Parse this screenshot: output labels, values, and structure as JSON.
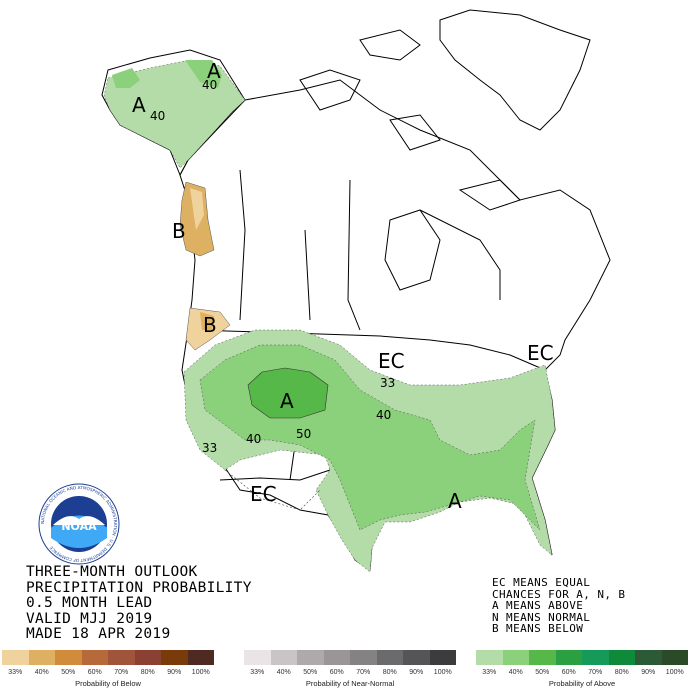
{
  "map_labels": {
    "alaska_a_top": "A",
    "alaska_40_top": "40",
    "alaska_a_mid": "A",
    "alaska_40_mid": "40",
    "pacific_nw_b": "B",
    "oregon_b": "B",
    "rockies_a": "A",
    "contour_50": "50",
    "contour_40_west": "40",
    "contour_33_west": "33",
    "contour_40_plains": "40",
    "contour_33_plains": "33",
    "ec_north": "EC",
    "ec_northeast": "EC",
    "ec_southwest": "EC",
    "southeast_a": "A"
  },
  "title": {
    "line1": "THREE-MONTH OUTLOOK",
    "line2": "PRECIPITATION PROBABILITY",
    "line3": "0.5 MONTH LEAD",
    "line4": "VALID MJJ 2019",
    "line5": "MADE 18 APR 2019"
  },
  "legend_notes": {
    "line1": "EC MEANS EQUAL",
    "line2": "CHANCES FOR A, N, B",
    "line3": "A MEANS ABOVE",
    "line4": "N MEANS NORMAL",
    "line5": "B MEANS BELOW"
  },
  "scales": {
    "below": {
      "title": "Probability of Below",
      "ticks": [
        "33%",
        "40%",
        "50%",
        "60%",
        "70%",
        "80%",
        "90%",
        "100%"
      ],
      "colors": [
        "#efd29c",
        "#ddb062",
        "#d08b3b",
        "#b8693a",
        "#a0543a",
        "#8a4032",
        "#7a3a0a",
        "#4f2a22"
      ]
    },
    "normal": {
      "title": "Probability of Near-Normal",
      "ticks": [
        "33%",
        "40%",
        "50%",
        "60%",
        "70%",
        "80%",
        "90%",
        "100%"
      ],
      "colors": [
        "#eae4e6",
        "#c9c4c6",
        "#aeaaac",
        "#9a9698",
        "#858284",
        "#6b6a6c",
        "#555456",
        "#3c3b3d"
      ]
    },
    "above": {
      "title": "Probability of Above",
      "ticks": [
        "33%",
        "40%",
        "50%",
        "60%",
        "70%",
        "80%",
        "90%",
        "100%"
      ],
      "colors": [
        "#b3dca8",
        "#8bd07a",
        "#55b848",
        "#2aa042",
        "#169a5a",
        "#0e8a3a",
        "#2c5a36",
        "#2a4a28"
      ]
    }
  },
  "colors": {
    "above_33": "#b3dca8",
    "above_40": "#8bd07a",
    "above_50": "#55b848",
    "below_33": "#efd29c",
    "below_40": "#ddb062"
  },
  "logo": {
    "text": "NOAA",
    "ring_text": "NATIONAL OCEANIC AND ATMOSPHERIC ADMINISTRATION · U.S. DEPARTMENT OF COMMERCE"
  }
}
